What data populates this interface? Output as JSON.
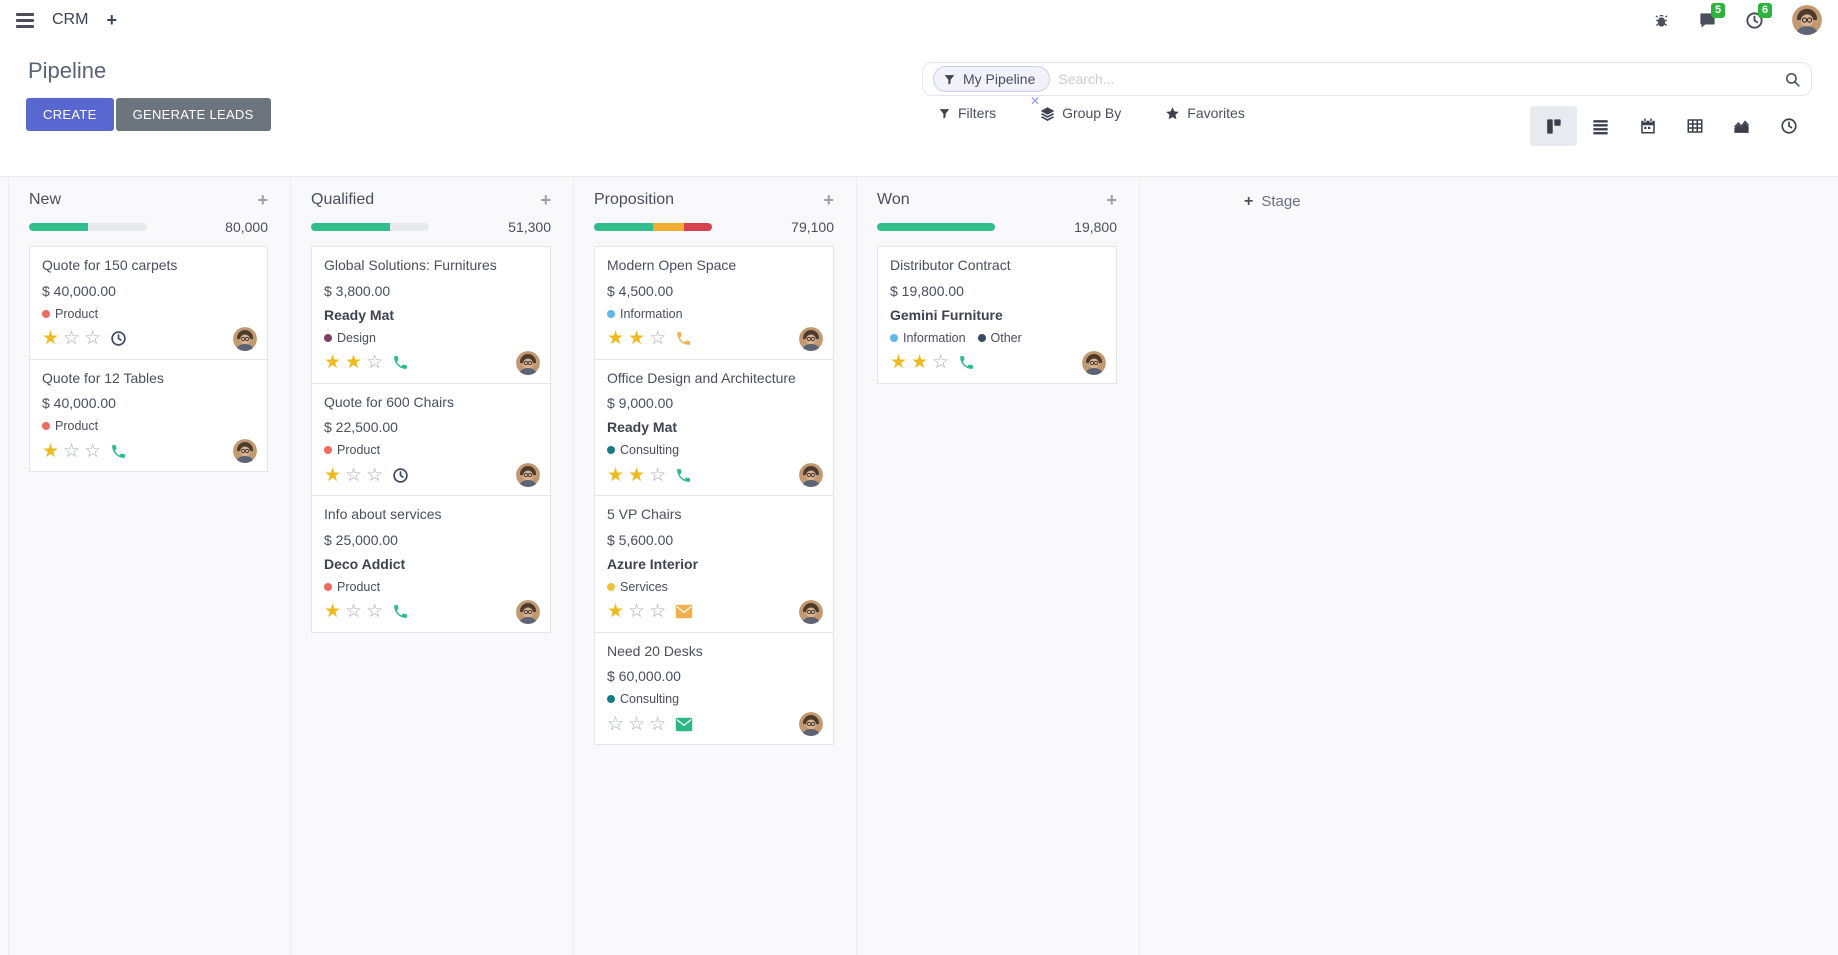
{
  "navbar": {
    "app_name": "CRM",
    "add_label": "+",
    "badges": {
      "messages": "5",
      "activities": "6"
    },
    "icons": [
      "menu-icon",
      "bug-icon",
      "messages-icon",
      "activities-clock-icon",
      "user-avatar"
    ]
  },
  "control_panel": {
    "title": "Pipeline",
    "create_label": "CREATE",
    "generate_label": "GENERATE LEADS",
    "accent_color": "#5968d0",
    "secondary_color": "#6c757d"
  },
  "search": {
    "facet_label": "My Pipeline",
    "facet_remove": "✕",
    "placeholder": "Search..."
  },
  "toolbar": {
    "filters": "Filters",
    "group_by": "Group By",
    "favorites": "Favorites"
  },
  "view_switcher": [
    "kanban",
    "list",
    "calendar",
    "pivot",
    "graph",
    "activity"
  ],
  "board": {
    "add_stage_label": "Stage",
    "add_stage_plus": "+",
    "column_add_label": "+",
    "stars_total": 3,
    "columns": [
      {
        "name": "New",
        "counter": "80,000",
        "progress": [
          {
            "color": "#32bd8c",
            "pct": 50
          },
          {
            "color": "#e6e8ec",
            "pct": 50
          }
        ],
        "cards": [
          {
            "title": "Quote for 150 carpets",
            "amount": "$ 40,000.00",
            "partner": null,
            "tags": [
              {
                "label": "Product",
                "color": "#ee6b60"
              }
            ],
            "stars_filled": 1,
            "activity": {
              "type": "clock",
              "color": "#424a63"
            }
          },
          {
            "title": "Quote for 12 Tables",
            "amount": "$ 40,000.00",
            "partner": null,
            "tags": [
              {
                "label": "Product",
                "color": "#ee6b60"
              }
            ],
            "stars_filled": 1,
            "activity": {
              "type": "phone",
              "color": "#2bbd90"
            }
          }
        ]
      },
      {
        "name": "Qualified",
        "counter": "51,300",
        "progress": [
          {
            "color": "#32bd8c",
            "pct": 67
          },
          {
            "color": "#e6e8ec",
            "pct": 33
          }
        ],
        "cards": [
          {
            "title": "Global Solutions: Furnitures",
            "amount": "$ 3,800.00",
            "partner": "Ready Mat",
            "tags": [
              {
                "label": "Design",
                "color": "#7c3f61"
              }
            ],
            "stars_filled": 2,
            "activity": {
              "type": "phone",
              "color": "#2bbd90"
            }
          },
          {
            "title": "Quote for 600 Chairs",
            "amount": "$ 22,500.00",
            "partner": null,
            "tags": [
              {
                "label": "Product",
                "color": "#ee6b60"
              }
            ],
            "stars_filled": 1,
            "activity": {
              "type": "clock",
              "color": "#424a63"
            }
          },
          {
            "title": "Info about services",
            "amount": "$ 25,000.00",
            "partner": "Deco Addict",
            "tags": [
              {
                "label": "Product",
                "color": "#ee6b60"
              }
            ],
            "stars_filled": 1,
            "activity": {
              "type": "phone",
              "color": "#2bbd90"
            }
          }
        ]
      },
      {
        "name": "Proposition",
        "counter": "79,100",
        "progress": [
          {
            "color": "#32bd8c",
            "pct": 50
          },
          {
            "color": "#f0ad31",
            "pct": 26
          },
          {
            "color": "#d8414e",
            "pct": 24
          }
        ],
        "cards": [
          {
            "title": "Modern Open Space",
            "amount": "$ 4,500.00",
            "partner": null,
            "tags": [
              {
                "label": "Information",
                "color": "#62b6e9"
              }
            ],
            "stars_filled": 2,
            "activity": {
              "type": "phone",
              "color": "#f0b14c"
            }
          },
          {
            "title": "Office Design and Architecture",
            "amount": "$ 9,000.00",
            "partner": "Ready Mat",
            "tags": [
              {
                "label": "Consulting",
                "color": "#177a85"
              }
            ],
            "stars_filled": 2,
            "activity": {
              "type": "phone",
              "color": "#2bbd90"
            }
          },
          {
            "title": "5 VP Chairs",
            "amount": "$ 5,600.00",
            "partner": "Azure Interior",
            "tags": [
              {
                "label": "Services",
                "color": "#efc23c"
              }
            ],
            "stars_filled": 1,
            "activity": {
              "type": "envelope",
              "color": "#f0b14c"
            }
          },
          {
            "title": "Need 20 Desks",
            "amount": "$ 60,000.00",
            "partner": null,
            "tags": [
              {
                "label": "Consulting",
                "color": "#177a85"
              }
            ],
            "stars_filled": 0,
            "activity": {
              "type": "envelope",
              "color": "#2ab985"
            }
          }
        ]
      },
      {
        "name": "Won",
        "counter": "19,800",
        "progress": [
          {
            "color": "#32bd8c",
            "pct": 100
          }
        ],
        "cards": [
          {
            "title": "Distributor Contract",
            "amount": "$ 19,800.00",
            "partner": "Gemini Furniture",
            "tags": [
              {
                "label": "Information",
                "color": "#62b6e9"
              },
              {
                "label": "Other",
                "color": "#3a4b68"
              }
            ],
            "stars_filled": 2,
            "activity": {
              "type": "phone",
              "color": "#2bbd90"
            }
          }
        ]
      }
    ]
  }
}
